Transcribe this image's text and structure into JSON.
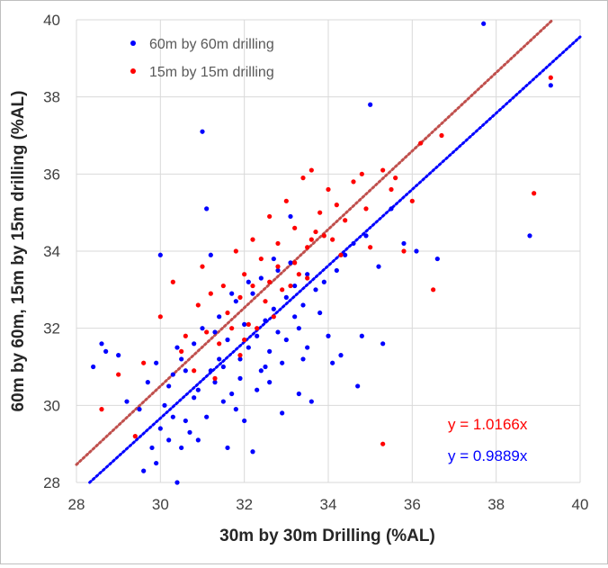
{
  "chart_data": {
    "type": "scatter",
    "xlabel": "30m by 30m Drilling (%AL)",
    "ylabel": "60m by 60m, 15m by 15m drilling (%AL)",
    "xlim": [
      28,
      40
    ],
    "ylim": [
      28,
      40
    ],
    "xticks": [
      "28",
      "30",
      "32",
      "34",
      "36",
      "38",
      "40"
    ],
    "yticks": [
      "28",
      "30",
      "32",
      "34",
      "36",
      "38",
      "40"
    ],
    "grid": true,
    "legend_position": "top-left",
    "series": [
      {
        "name": "60m by 60m drilling",
        "color": "#0000ff",
        "fit_slope": 0.9889,
        "equation": "y = 0.9889x",
        "points": [
          [
            28.4,
            31.0
          ],
          [
            28.6,
            31.6
          ],
          [
            28.7,
            31.4
          ],
          [
            29.0,
            31.3
          ],
          [
            29.2,
            30.1
          ],
          [
            29.5,
            29.9
          ],
          [
            29.6,
            28.3
          ],
          [
            29.8,
            28.9
          ],
          [
            29.9,
            28.5
          ],
          [
            30.0,
            33.9
          ],
          [
            30.2,
            29.1
          ],
          [
            30.3,
            29.7
          ],
          [
            30.4,
            28.0
          ],
          [
            30.5,
            28.9
          ],
          [
            30.7,
            29.3
          ],
          [
            30.8,
            30.2
          ],
          [
            31.0,
            37.1
          ],
          [
            31.1,
            35.1
          ],
          [
            31.2,
            33.9
          ],
          [
            31.4,
            31.2
          ],
          [
            31.6,
            28.9
          ],
          [
            31.8,
            29.9
          ],
          [
            32.0,
            29.6
          ],
          [
            32.2,
            28.8
          ],
          [
            32.4,
            30.9
          ],
          [
            32.6,
            30.6
          ],
          [
            32.9,
            29.8
          ],
          [
            33.1,
            34.9
          ],
          [
            33.3,
            30.3
          ],
          [
            33.6,
            30.1
          ],
          [
            34.0,
            31.8
          ],
          [
            34.1,
            31.1
          ],
          [
            34.3,
            31.3
          ],
          [
            34.7,
            30.5
          ],
          [
            34.8,
            31.8
          ],
          [
            35.0,
            37.8
          ],
          [
            35.2,
            33.6
          ],
          [
            35.3,
            31.6
          ],
          [
            35.5,
            35.1
          ],
          [
            35.8,
            34.2
          ],
          [
            36.1,
            34.0
          ],
          [
            36.6,
            33.8
          ],
          [
            38.8,
            34.4
          ],
          [
            39.3,
            38.3
          ],
          [
            37.7,
            39.9
          ],
          [
            30.9,
            30.4
          ],
          [
            31.3,
            30.6
          ],
          [
            31.5,
            31.0
          ],
          [
            31.7,
            30.3
          ],
          [
            31.9,
            31.2
          ],
          [
            32.1,
            31.5
          ],
          [
            32.3,
            31.8
          ],
          [
            32.5,
            32.2
          ],
          [
            32.7,
            32.5
          ],
          [
            32.8,
            31.9
          ],
          [
            33.0,
            32.8
          ],
          [
            33.2,
            33.1
          ],
          [
            33.4,
            32.6
          ],
          [
            33.5,
            33.4
          ],
          [
            33.7,
            33.0
          ],
          [
            30.1,
            30.0
          ],
          [
            30.3,
            30.8
          ],
          [
            30.5,
            31.2
          ],
          [
            30.6,
            29.6
          ],
          [
            30.8,
            31.6
          ],
          [
            31.0,
            32.0
          ],
          [
            31.2,
            30.9
          ],
          [
            31.4,
            32.3
          ],
          [
            31.6,
            31.7
          ],
          [
            31.8,
            32.7
          ],
          [
            32.0,
            32.1
          ],
          [
            32.2,
            32.9
          ],
          [
            32.4,
            33.3
          ],
          [
            32.6,
            31.4
          ],
          [
            32.8,
            33.5
          ],
          [
            33.0,
            31.7
          ],
          [
            33.2,
            32.3
          ],
          [
            33.4,
            31.2
          ],
          [
            29.7,
            30.6
          ],
          [
            29.9,
            31.1
          ],
          [
            30.0,
            29.4
          ],
          [
            30.2,
            30.5
          ],
          [
            30.4,
            31.5
          ],
          [
            30.6,
            30.9
          ],
          [
            30.9,
            29.1
          ],
          [
            31.1,
            29.7
          ],
          [
            31.3,
            31.9
          ],
          [
            31.5,
            30.1
          ],
          [
            31.7,
            32.9
          ],
          [
            31.9,
            30.7
          ],
          [
            32.1,
            33.2
          ],
          [
            32.3,
            30.4
          ],
          [
            32.5,
            31.0
          ],
          [
            32.7,
            33.8
          ],
          [
            32.9,
            31.1
          ],
          [
            33.1,
            33.7
          ],
          [
            33.3,
            32.0
          ],
          [
            33.5,
            31.5
          ],
          [
            33.8,
            32.4
          ],
          [
            33.9,
            33.2
          ],
          [
            34.2,
            33.5
          ],
          [
            34.4,
            33.9
          ],
          [
            34.6,
            34.2
          ],
          [
            34.9,
            34.4
          ]
        ]
      },
      {
        "name": "15m by 15m drilling",
        "color": "#ff0000",
        "fit_slope": 1.0166,
        "equation": "y = 1.0166x",
        "points": [
          [
            28.6,
            29.9
          ],
          [
            29.0,
            30.8
          ],
          [
            29.4,
            29.2
          ],
          [
            29.6,
            31.1
          ],
          [
            30.0,
            32.3
          ],
          [
            30.3,
            33.2
          ],
          [
            30.6,
            31.8
          ],
          [
            30.9,
            32.6
          ],
          [
            31.0,
            33.6
          ],
          [
            31.2,
            32.9
          ],
          [
            31.3,
            30.7
          ],
          [
            31.5,
            33.1
          ],
          [
            31.7,
            32.0
          ],
          [
            31.8,
            34.0
          ],
          [
            32.0,
            33.4
          ],
          [
            32.1,
            32.1
          ],
          [
            32.2,
            34.3
          ],
          [
            32.4,
            33.8
          ],
          [
            32.5,
            32.7
          ],
          [
            32.6,
            34.9
          ],
          [
            32.8,
            34.2
          ],
          [
            32.9,
            33.0
          ],
          [
            33.0,
            35.3
          ],
          [
            33.2,
            34.6
          ],
          [
            33.3,
            33.4
          ],
          [
            33.4,
            35.9
          ],
          [
            33.5,
            34.1
          ],
          [
            33.6,
            36.1
          ],
          [
            33.8,
            35.0
          ],
          [
            33.9,
            34.4
          ],
          [
            34.0,
            35.6
          ],
          [
            34.2,
            35.2
          ],
          [
            34.4,
            34.8
          ],
          [
            34.6,
            35.8
          ],
          [
            34.8,
            36.0
          ],
          [
            35.0,
            34.1
          ],
          [
            35.3,
            36.1
          ],
          [
            35.5,
            35.6
          ],
          [
            35.8,
            34.0
          ],
          [
            36.0,
            35.3
          ],
          [
            36.2,
            36.8
          ],
          [
            36.5,
            33.0
          ],
          [
            36.7,
            37.0
          ],
          [
            38.9,
            35.5
          ],
          [
            39.3,
            38.5
          ],
          [
            35.3,
            29.0
          ],
          [
            31.4,
            31.6
          ],
          [
            31.6,
            32.4
          ],
          [
            31.9,
            31.3
          ],
          [
            32.3,
            32.0
          ],
          [
            32.7,
            32.3
          ],
          [
            33.1,
            33.1
          ],
          [
            33.5,
            33.3
          ],
          [
            33.7,
            34.5
          ],
          [
            34.1,
            34.3
          ],
          [
            34.3,
            33.9
          ],
          [
            30.5,
            31.4
          ],
          [
            30.8,
            30.9
          ],
          [
            31.1,
            31.9
          ],
          [
            31.9,
            32.8
          ],
          [
            32.0,
            31.7
          ],
          [
            32.8,
            33.6
          ],
          [
            33.2,
            33.7
          ],
          [
            32.2,
            33.1
          ],
          [
            32.6,
            33.2
          ],
          [
            33.6,
            34.3
          ],
          [
            34.9,
            35.1
          ],
          [
            35.6,
            35.9
          ]
        ]
      }
    ]
  }
}
